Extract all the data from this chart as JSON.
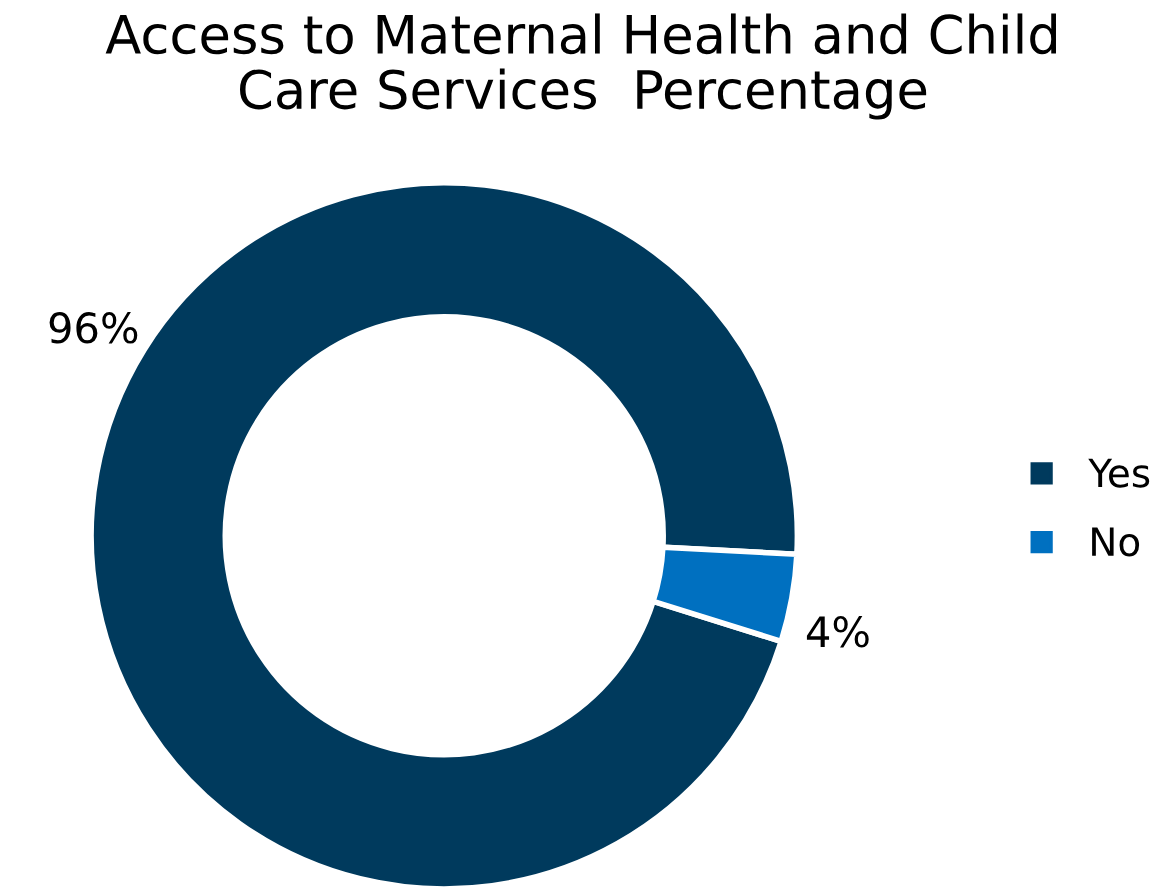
{
  "chart_data": {
    "type": "donut",
    "title": "Access to Maternal Health and Child\nCare Services  Percentage",
    "categories": [
      "Yes",
      "No"
    ],
    "values": [
      96,
      4
    ],
    "colors": [
      "#003a5d",
      "#0070c0"
    ],
    "value_labels": [
      "96%",
      "4%"
    ],
    "legend": "right"
  }
}
